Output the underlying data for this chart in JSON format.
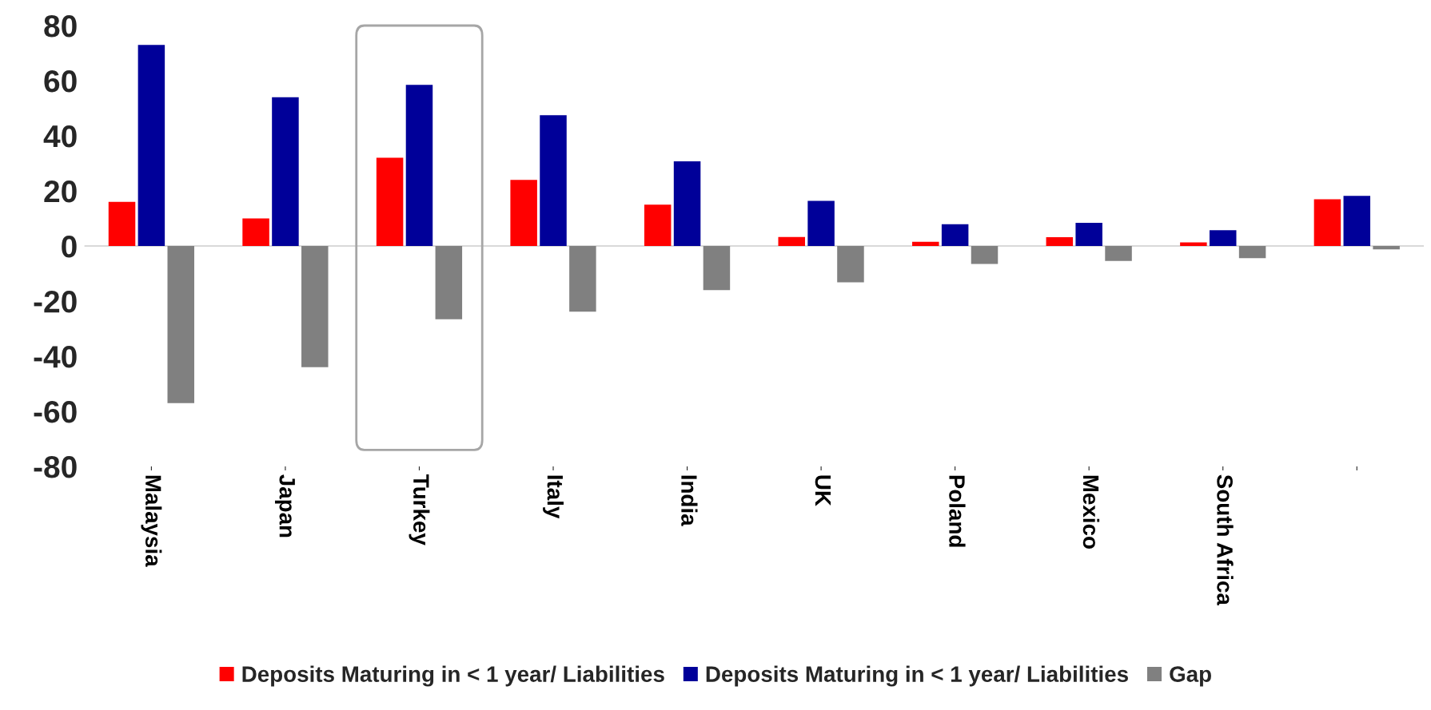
{
  "chart_data": {
    "type": "bar",
    "categories": [
      "Malaysia",
      "Japan",
      "Turkey",
      "Italy",
      "India",
      "UK",
      "Poland",
      "Mexico",
      "South Africa",
      null
    ],
    "series": [
      {
        "name": "Deposits Maturing in < 1 year/ Liabilities",
        "color": "#ff0000",
        "values": [
          16,
          10,
          32,
          24,
          15,
          3.3,
          1.5,
          3.2,
          1.3,
          17
        ]
      },
      {
        "name": "Deposits Maturing in < 1 year/ Liabilities",
        "color": "#000099",
        "values": [
          73,
          54,
          58.5,
          47.5,
          30.7,
          16.4,
          7.9,
          8.4,
          5.7,
          18.2
        ]
      },
      {
        "name": "Gap",
        "color": "#808080",
        "values": [
          -57,
          -44,
          -26.6,
          -23.8,
          -16,
          -13.2,
          -6.5,
          -5.4,
          -4.4,
          -1.2
        ]
      }
    ],
    "ylim": [
      -80,
      80
    ],
    "yticks": [
      -80,
      -60,
      -40,
      -20,
      0,
      20,
      40,
      60,
      80
    ],
    "legend": "bottom"
  }
}
